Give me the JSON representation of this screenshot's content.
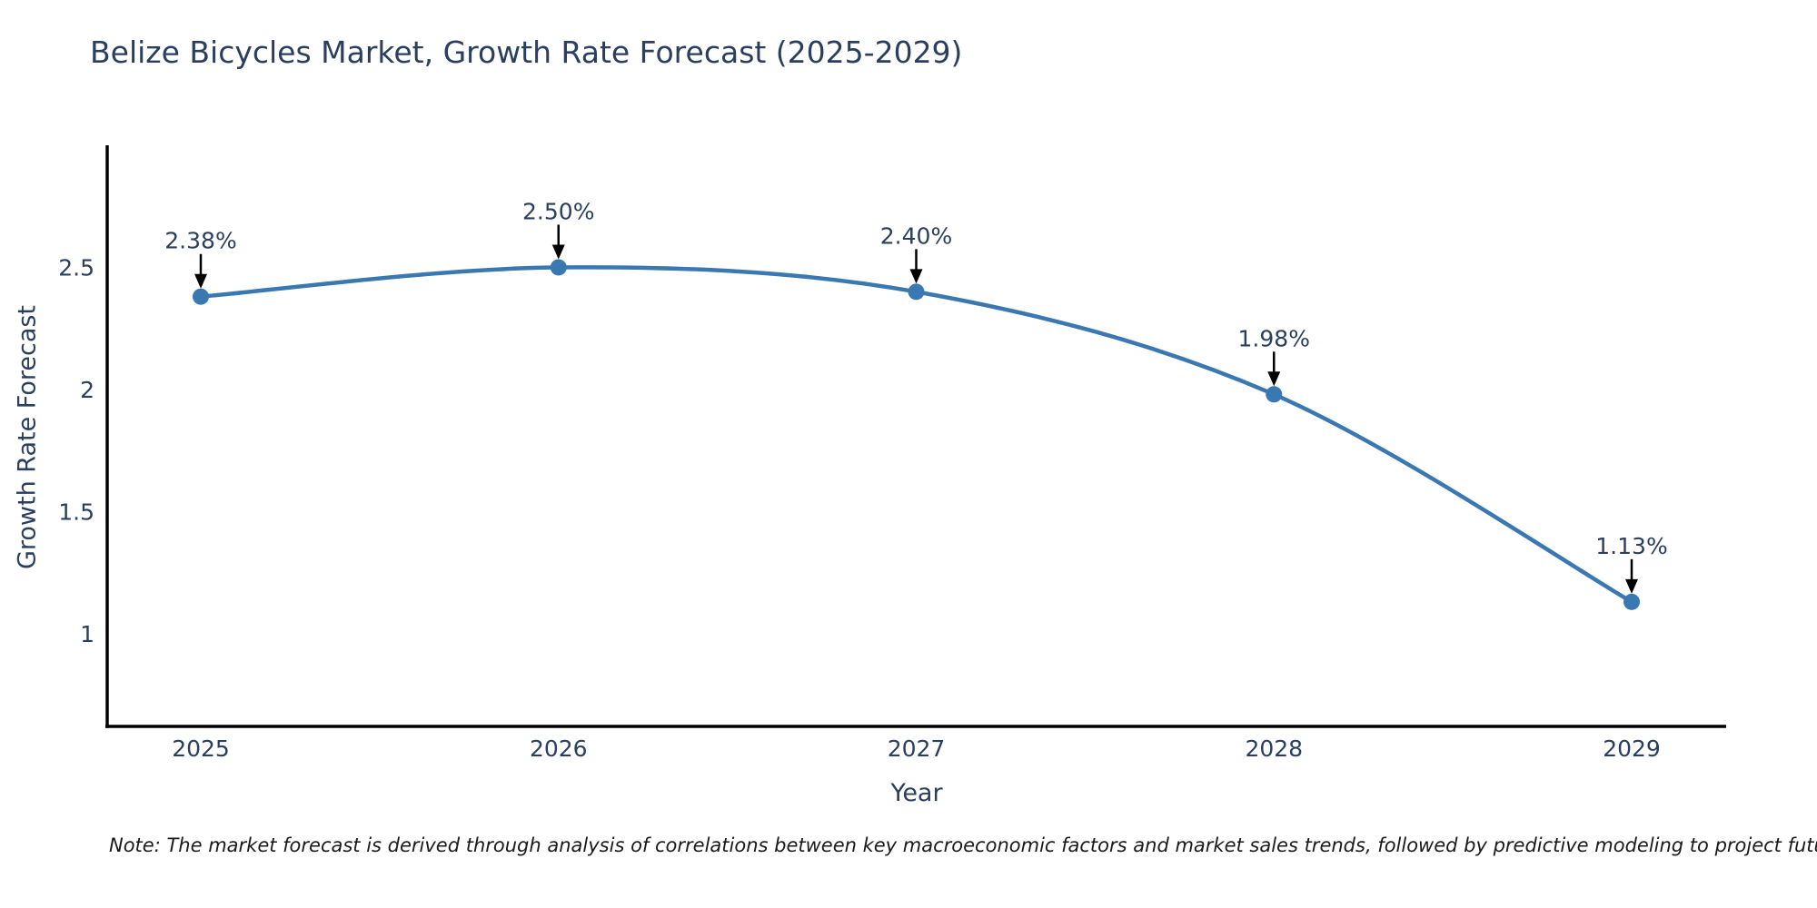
{
  "page": {
    "background": "#ffffff"
  },
  "chart_data": {
    "type": "line",
    "title": "Belize Bicycles Market, Growth Rate Forecast (2025-2029)",
    "xlabel": "Year",
    "ylabel": "Growth Rate Forecast",
    "x": [
      2025,
      2026,
      2027,
      2028,
      2029
    ],
    "x_tick_labels": [
      "2025",
      "2026",
      "2027",
      "2028",
      "2029"
    ],
    "series": [
      {
        "name": "Growth Rate Forecast",
        "values": [
          2.38,
          2.5,
          2.4,
          1.98,
          1.13
        ],
        "point_labels": [
          "2.38%",
          "2.50%",
          "2.40%",
          "1.98%",
          "1.13%"
        ]
      }
    ],
    "y_ticks": [
      1,
      1.5,
      2,
      2.5
    ],
    "y_tick_labels": [
      "1",
      "1.5",
      "2",
      "2.5"
    ],
    "ylim": [
      0.62,
      3.0
    ],
    "grid": false,
    "legend": false,
    "line_shape": "spline",
    "colors": {
      "line": "#3a78b2",
      "marker": "#3a78b2",
      "axis_line": "#000000",
      "annotation_arrow": "#000000",
      "text": "#2a3f5f"
    }
  },
  "note": {
    "text": "Note: The market forecast is derived through analysis of correlations between key macroeconomic factors and market sales trends, followed by predictive modeling to project future sales"
  }
}
